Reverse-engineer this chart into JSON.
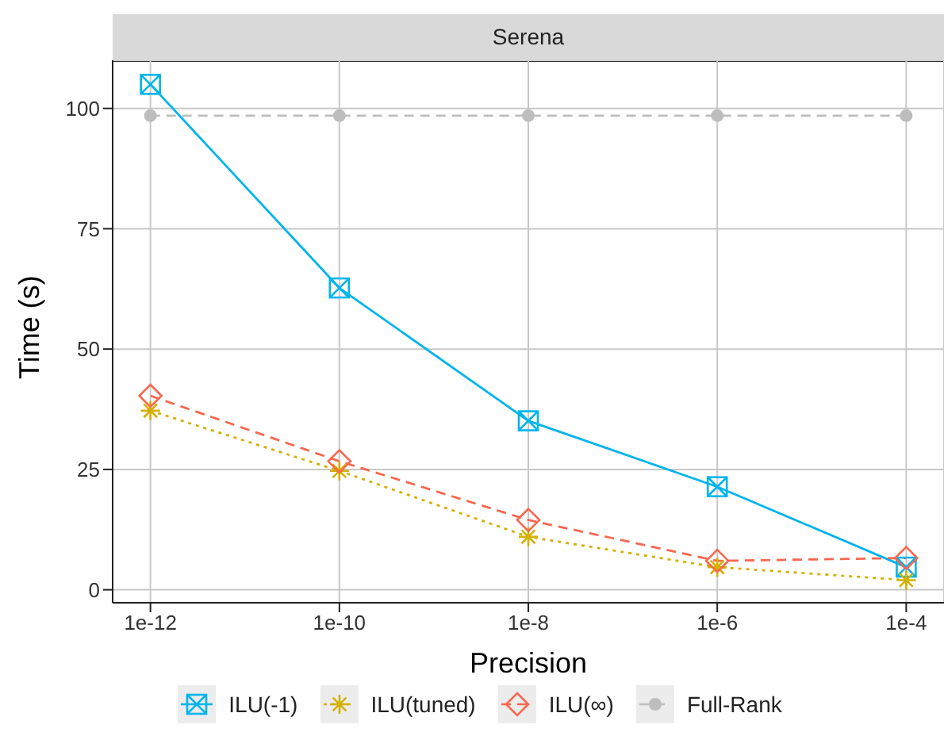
{
  "chart_data": {
    "type": "line",
    "title": "Serena",
    "xlabel": "Precision",
    "ylabel": "Time (s)",
    "categories": [
      "1e-12",
      "1e-10",
      "1e-8",
      "1e-6",
      "1e-4"
    ],
    "series": [
      {
        "name": "ILU(-1)",
        "color": "#00b4ec",
        "marker": "square",
        "line_style": "solid",
        "values": [
          105,
          62.7,
          35.1,
          21.4,
          4.7
        ]
      },
      {
        "name": "ILU(tuned)",
        "color": "#d4b000",
        "marker": "cross",
        "line_style": "dotted",
        "values": [
          37.2,
          24.7,
          11,
          4.7,
          2
        ]
      },
      {
        "name": "ILU(∞)",
        "color": "#f8674f",
        "marker": "diamond",
        "line_style": "dashed",
        "values": [
          40.3,
          26.7,
          14.5,
          6,
          6.6
        ]
      },
      {
        "name": "Full-Rank",
        "color": "#bdbdbd",
        "marker": "circle",
        "line_style": "dashed",
        "values": [
          98.5,
          98.5,
          98.5,
          98.5,
          98.5
        ]
      }
    ],
    "ylim": [
      -2.7,
      110
    ],
    "yticks": [
      0,
      25,
      50,
      75,
      100
    ],
    "grid": true,
    "legend": "bottom"
  }
}
